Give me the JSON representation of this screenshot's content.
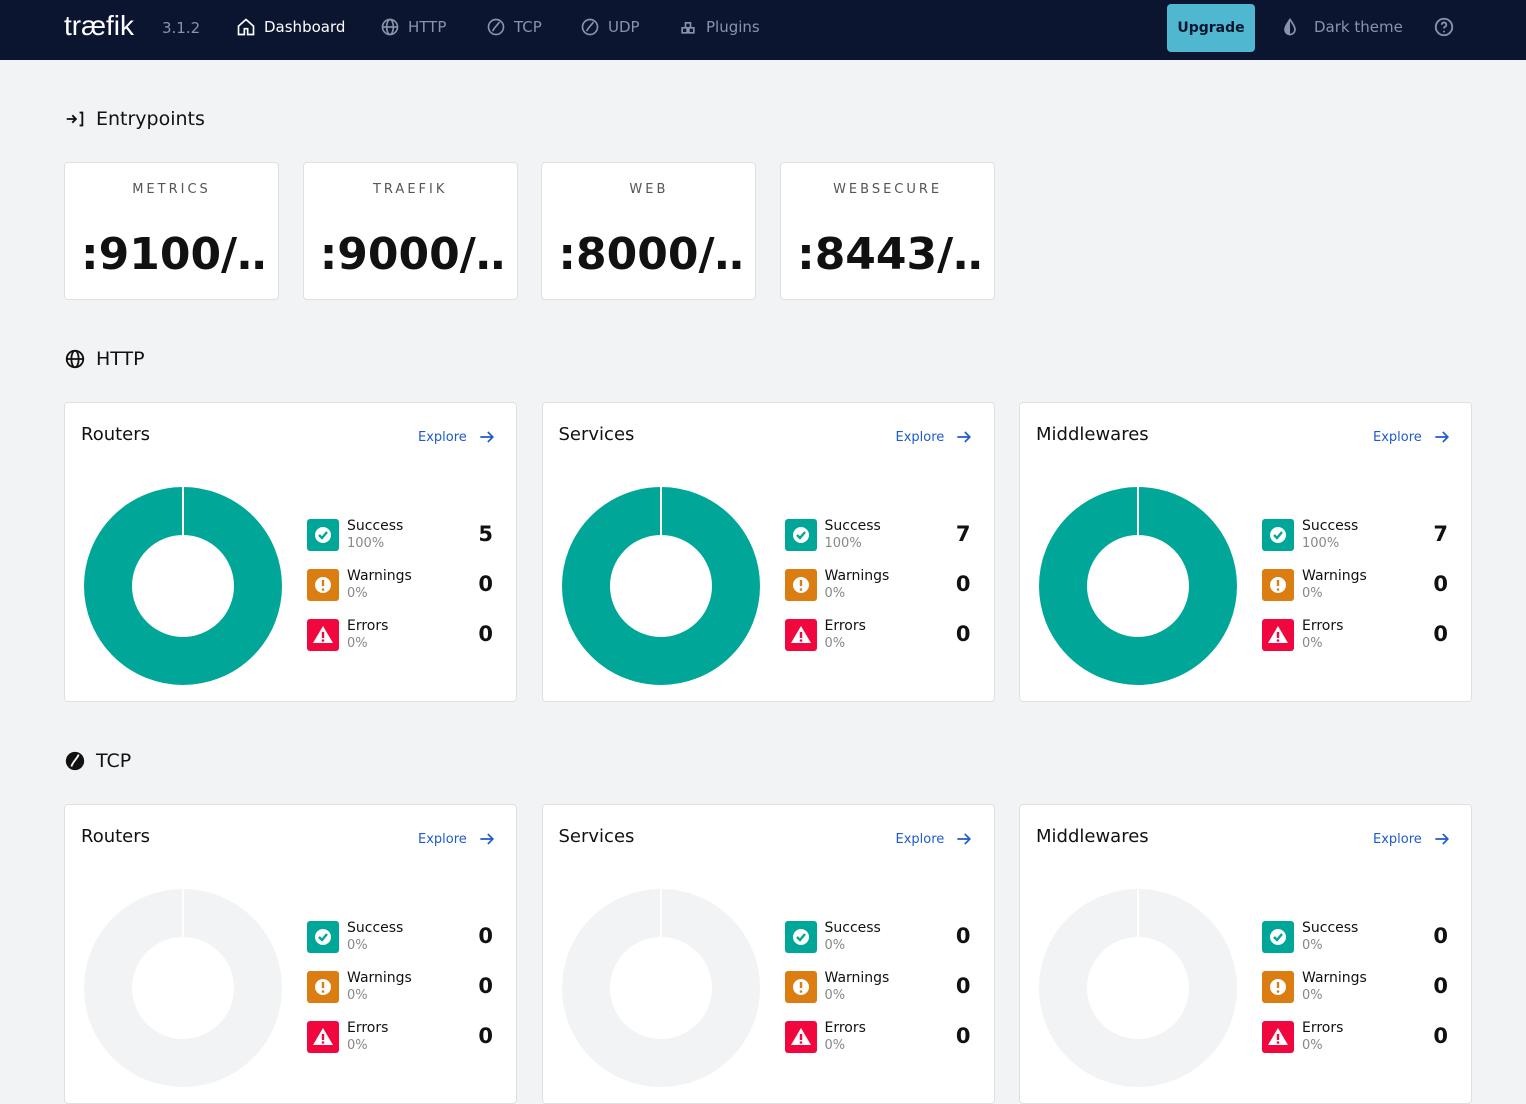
{
  "nav": {
    "logo": "træfik",
    "version": "3.1.2",
    "items": [
      "Dashboard",
      "HTTP",
      "TCP",
      "UDP",
      "Plugins"
    ],
    "upgrade": "Upgrade",
    "theme": "Dark theme"
  },
  "entrypoints": {
    "title": "Entrypoints",
    "items": [
      {
        "name": "METRICS",
        "address": ":9100/…"
      },
      {
        "name": "TRAEFIK",
        "address": ":9000/…"
      },
      {
        "name": "WEB",
        "address": ":8000/…"
      },
      {
        "name": "WEBSECURE",
        "address": ":8443/…"
      }
    ]
  },
  "sections": [
    {
      "title": "HTTP",
      "cards": [
        {
          "title": "Routers",
          "explore": "Explore",
          "stats": [
            {
              "label": "Success",
              "percent": "100%",
              "count": 5
            },
            {
              "label": "Warnings",
              "percent": "0%",
              "count": 0
            },
            {
              "label": "Errors",
              "percent": "0%",
              "count": 0
            }
          ]
        },
        {
          "title": "Services",
          "explore": "Explore",
          "stats": [
            {
              "label": "Success",
              "percent": "100%",
              "count": 7
            },
            {
              "label": "Warnings",
              "percent": "0%",
              "count": 0
            },
            {
              "label": "Errors",
              "percent": "0%",
              "count": 0
            }
          ]
        },
        {
          "title": "Middlewares",
          "explore": "Explore",
          "stats": [
            {
              "label": "Success",
              "percent": "100%",
              "count": 7
            },
            {
              "label": "Warnings",
              "percent": "0%",
              "count": 0
            },
            {
              "label": "Errors",
              "percent": "0%",
              "count": 0
            }
          ]
        }
      ]
    },
    {
      "title": "TCP",
      "cards": [
        {
          "title": "Routers",
          "explore": "Explore",
          "stats": [
            {
              "label": "Success",
              "percent": "0%",
              "count": 0
            },
            {
              "label": "Warnings",
              "percent": "0%",
              "count": 0
            },
            {
              "label": "Errors",
              "percent": "0%",
              "count": 0
            }
          ]
        },
        {
          "title": "Services",
          "explore": "Explore",
          "stats": [
            {
              "label": "Success",
              "percent": "0%",
              "count": 0
            },
            {
              "label": "Warnings",
              "percent": "0%",
              "count": 0
            },
            {
              "label": "Errors",
              "percent": "0%",
              "count": 0
            }
          ]
        },
        {
          "title": "Middlewares",
          "explore": "Explore",
          "stats": [
            {
              "label": "Success",
              "percent": "0%",
              "count": 0
            },
            {
              "label": "Warnings",
              "percent": "0%",
              "count": 0
            },
            {
              "label": "Errors",
              "percent": "0%",
              "count": 0
            }
          ]
        }
      ]
    }
  ]
}
